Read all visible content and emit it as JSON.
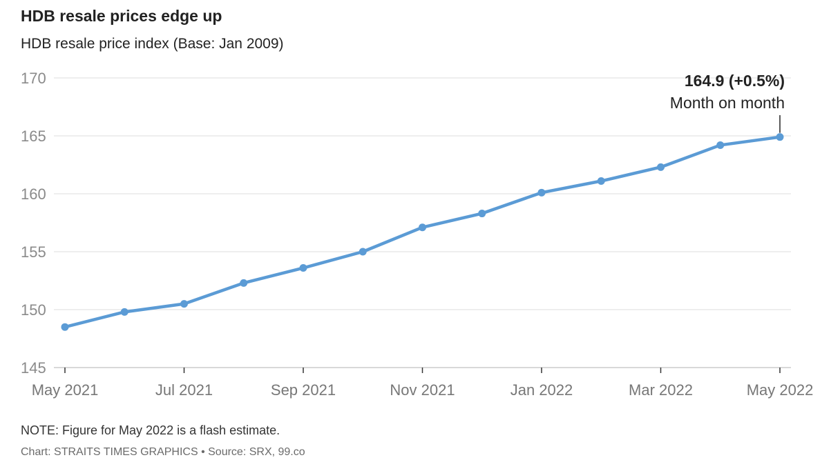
{
  "header": {
    "title": "HDB resale prices edge up",
    "subtitle": "HDB resale price index (Base: Jan 2009)"
  },
  "footer": {
    "note": "NOTE: Figure for May 2022 is a flash estimate.",
    "credit": "Chart: STRAITS TIMES GRAPHICS • Source: SRX, 99.co"
  },
  "colors": {
    "line": "#5b9bd5",
    "grid": "#e3e3e3",
    "axis": "#cccccc"
  },
  "chart_data": {
    "type": "line",
    "title": "HDB resale prices edge up",
    "subtitle": "HDB resale price index (Base: Jan 2009)",
    "x": [
      "May 2021",
      "Jun 2021",
      "Jul 2021",
      "Aug 2021",
      "Sep 2021",
      "Oct 2021",
      "Nov 2021",
      "Dec 2021",
      "Jan 2022",
      "Feb 2022",
      "Mar 2022",
      "Apr 2022",
      "May 2022"
    ],
    "x_tick_labels": [
      "May 2021",
      "Jul 2021",
      "Sep 2021",
      "Nov 2021",
      "Jan 2022",
      "Mar 2022",
      "May 2022"
    ],
    "y_ticks": [
      145,
      150,
      155,
      160,
      165,
      170
    ],
    "ylim": [
      145,
      170
    ],
    "series": [
      {
        "values": [
          148.5,
          149.8,
          150.5,
          152.3,
          153.6,
          155.0,
          157.1,
          158.3,
          160.1,
          161.1,
          162.3,
          164.2,
          164.9
        ]
      }
    ],
    "annotation": {
      "value": "164.9 (+0.5%)",
      "label": "Month on month",
      "point_index": 12
    },
    "grid": true,
    "legend": "none"
  }
}
